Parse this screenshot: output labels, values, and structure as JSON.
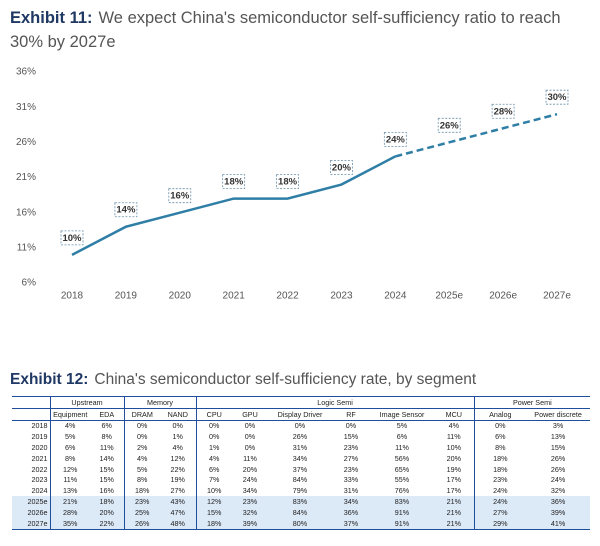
{
  "chart_data": {
    "type": "line",
    "exhibit": "Exhibit 11:",
    "title": "We expect China's semiconductor self-sufficiency ratio to reach 30% by 2027e",
    "categories": [
      "2018",
      "2019",
      "2020",
      "2021",
      "2022",
      "2023",
      "2024",
      "2025e",
      "2026e",
      "2027e"
    ],
    "series": [
      {
        "color": "#2f7ea6",
        "dashed": false,
        "values": [
          10,
          14,
          16,
          18,
          18,
          20,
          24,
          null,
          null,
          null
        ],
        "value_labels": [
          "10%",
          "14%",
          "16%",
          "18%",
          "18%",
          "20%",
          "24%",
          null,
          null,
          null
        ]
      },
      {
        "color": "#2f7ea6",
        "dashed": true,
        "values": [
          null,
          null,
          null,
          null,
          null,
          null,
          24,
          26,
          28,
          30
        ],
        "value_labels": [
          null,
          null,
          null,
          null,
          null,
          null,
          null,
          "26%",
          "28%",
          "30%"
        ]
      }
    ],
    "ylim": [
      6,
      36
    ],
    "yticks": [
      {
        "value": 6,
        "label": "6%"
      },
      {
        "value": 11,
        "label": "11%"
      },
      {
        "value": 16,
        "label": "16%"
      },
      {
        "value": 21,
        "label": "21%"
      },
      {
        "value": 26,
        "label": "26%"
      },
      {
        "value": 31,
        "label": "31%"
      },
      {
        "value": 36,
        "label": "36%"
      }
    ],
    "grid": false
  },
  "table": {
    "exhibit": "Exhibit 12:",
    "title": "China's semiconductor self-sufficiency rate, by segment",
    "groups": [
      {
        "label": "Upstream",
        "columns": [
          "Equipment",
          "EDA"
        ]
      },
      {
        "label": "Memory",
        "columns": [
          "DRAM",
          "NAND"
        ]
      },
      {
        "label": "Logic Semi",
        "columns": [
          "CPU",
          "GPU",
          "Display Driver",
          "RF",
          "Image Sensor",
          "MCU"
        ]
      },
      {
        "label": "Power Semi",
        "columns": [
          "Analog",
          "Power discrete"
        ]
      }
    ],
    "rows": [
      [
        "2018",
        "4%",
        "6%",
        "0%",
        "0%",
        "0%",
        "0%",
        "0%",
        "0%",
        "5%",
        "4%",
        "0%",
        "3%"
      ],
      [
        "2019",
        "5%",
        "8%",
        "0%",
        "1%",
        "0%",
        "0%",
        "26%",
        "15%",
        "6%",
        "11%",
        "6%",
        "13%"
      ],
      [
        "2020",
        "6%",
        "11%",
        "2%",
        "4%",
        "1%",
        "0%",
        "31%",
        "23%",
        "11%",
        "10%",
        "8%",
        "15%"
      ],
      [
        "2021",
        "8%",
        "14%",
        "4%",
        "12%",
        "4%",
        "11%",
        "34%",
        "27%",
        "56%",
        "20%",
        "18%",
        "26%"
      ],
      [
        "2022",
        "12%",
        "15%",
        "5%",
        "22%",
        "6%",
        "20%",
        "37%",
        "23%",
        "65%",
        "19%",
        "18%",
        "26%"
      ],
      [
        "2023",
        "11%",
        "15%",
        "8%",
        "19%",
        "7%",
        "24%",
        "84%",
        "33%",
        "55%",
        "17%",
        "23%",
        "24%"
      ],
      [
        "2024",
        "13%",
        "16%",
        "18%",
        "27%",
        "10%",
        "34%",
        "79%",
        "31%",
        "76%",
        "17%",
        "24%",
        "32%"
      ],
      [
        "2025e",
        "21%",
        "18%",
        "23%",
        "43%",
        "12%",
        "23%",
        "83%",
        "34%",
        "83%",
        "21%",
        "24%",
        "36%"
      ],
      [
        "2026e",
        "28%",
        "20%",
        "25%",
        "47%",
        "15%",
        "32%",
        "84%",
        "36%",
        "91%",
        "21%",
        "27%",
        "39%"
      ],
      [
        "2027e",
        "35%",
        "22%",
        "26%",
        "48%",
        "18%",
        "39%",
        "80%",
        "37%",
        "91%",
        "21%",
        "29%",
        "41%"
      ]
    ]
  }
}
